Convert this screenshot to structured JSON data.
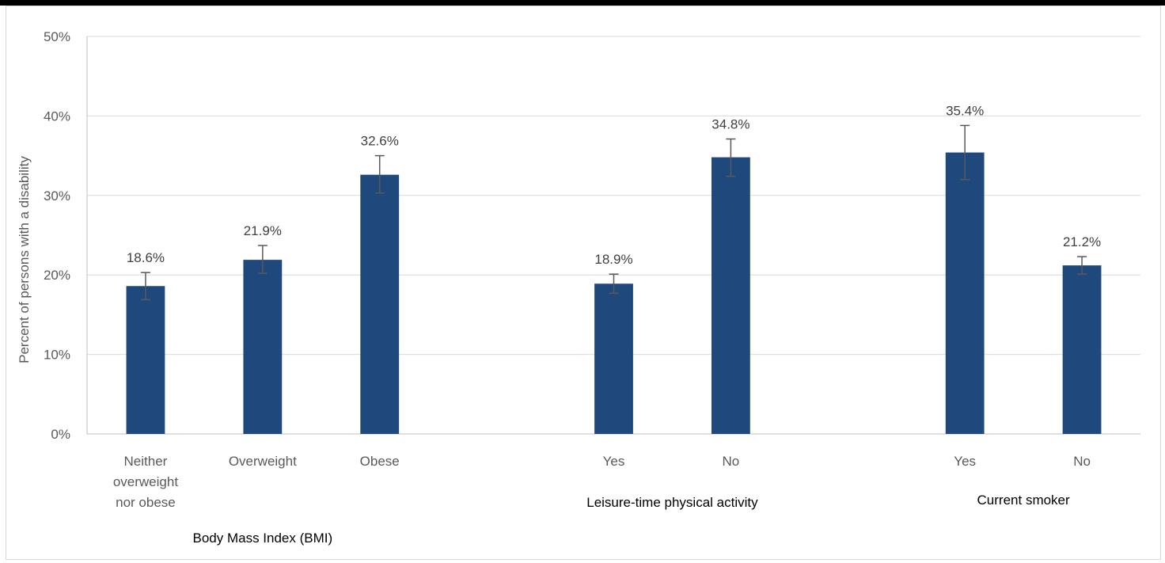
{
  "chart_data": {
    "type": "bar",
    "title": "",
    "ylabel": "Percent of persons with a disability",
    "ylim": [
      0,
      50
    ],
    "yticks": [
      0,
      10,
      20,
      30,
      40,
      50
    ],
    "ytick_labels": [
      "0%",
      "10%",
      "20%",
      "30%",
      "40%",
      "50%"
    ],
    "grid": true,
    "bar_color": "#1f497d",
    "error_bar_color": "#595959",
    "groups": [
      {
        "label": "Body Mass Index (BMI)",
        "categories": [
          {
            "label": [
              "Neither",
              "overweight",
              "nor obese"
            ],
            "value": 18.6,
            "value_label": "18.6%",
            "err_low": 16.9,
            "err_high": 20.3
          },
          {
            "label": [
              "Overweight"
            ],
            "value": 21.9,
            "value_label": "21.9%",
            "err_low": 20.2,
            "err_high": 23.7
          },
          {
            "label": [
              "Obese"
            ],
            "value": 32.6,
            "value_label": "32.6%",
            "err_low": 30.3,
            "err_high": 35.0
          }
        ]
      },
      {
        "label": "Leisure-time physical activity",
        "categories": [
          {
            "label": [
              "Yes"
            ],
            "value": 18.9,
            "value_label": "18.9%",
            "err_low": 17.7,
            "err_high": 20.1
          },
          {
            "label": [
              "No"
            ],
            "value": 34.8,
            "value_label": "34.8%",
            "err_low": 32.4,
            "err_high": 37.1
          }
        ]
      },
      {
        "label": "Current smoker",
        "categories": [
          {
            "label": [
              "Yes"
            ],
            "value": 35.4,
            "value_label": "35.4%",
            "err_low": 32.0,
            "err_high": 38.8
          },
          {
            "label": [
              "No"
            ],
            "value": 21.2,
            "value_label": "21.2%",
            "err_low": 20.1,
            "err_high": 22.3
          }
        ]
      }
    ]
  }
}
